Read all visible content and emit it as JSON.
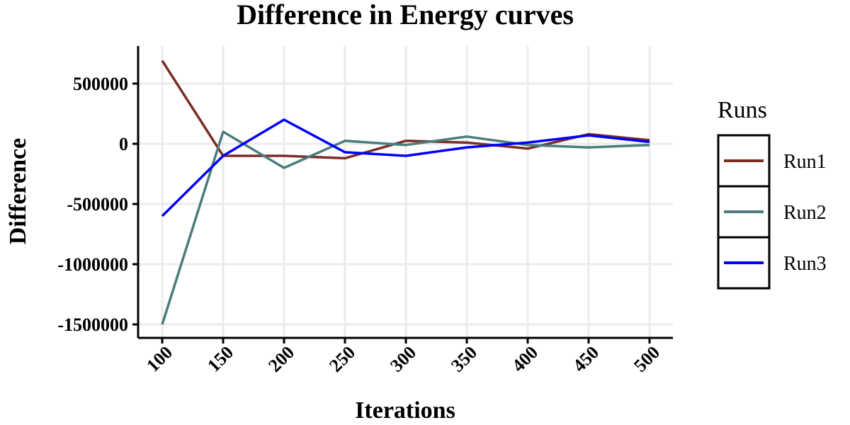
{
  "chart_data": {
    "type": "line",
    "title": "Difference in Energy curves",
    "xlabel": "Iterations",
    "ylabel": "Difference",
    "x": [
      100,
      150,
      200,
      250,
      300,
      350,
      400,
      450,
      500
    ],
    "xlim": [
      80,
      520
    ],
    "ylim": [
      -1600000,
      800000
    ],
    "yticks": [
      500000,
      0,
      -500000,
      -1000000,
      -1500000
    ],
    "ytick_labels": [
      "500000",
      "0",
      "-500000",
      "-1000000",
      "-1500000"
    ],
    "xtick_labels": [
      "100",
      "150",
      "200",
      "250",
      "300",
      "350",
      "400",
      "450",
      "500"
    ],
    "grid": true,
    "legend_title": "Runs",
    "legend_position": "right",
    "series": [
      {
        "name": "Run1",
        "color": "#7b2d26",
        "values": [
          690000,
          -100000,
          -100000,
          -120000,
          25000,
          10000,
          -40000,
          80000,
          30000
        ]
      },
      {
        "name": "Run2",
        "color": "#4a7c7e",
        "values": [
          -1500000,
          100000,
          -200000,
          25000,
          -10000,
          60000,
          -10000,
          -30000,
          -10000
        ]
      },
      {
        "name": "Run3",
        "color": "#0000ff",
        "values": [
          -600000,
          -100000,
          200000,
          -70000,
          -100000,
          -30000,
          10000,
          70000,
          15000
        ]
      }
    ]
  }
}
